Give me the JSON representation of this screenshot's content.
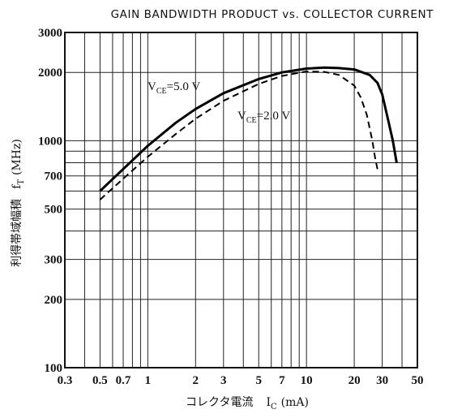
{
  "chart_data": {
    "type": "line",
    "title": "GAIN BANDWIDTH PRODUCT vs. COLLECTOR CURRENT",
    "xlabel": {
      "main": "コレクタ電流",
      "symbol": "I",
      "subscript": "C",
      "unit": "(mA)"
    },
    "ylabel": {
      "main": "利得帯域幅積",
      "symbol": "f",
      "subscript": "T",
      "unit": "(MHz)"
    },
    "x_scale": "log",
    "y_scale": "log",
    "xlim": [
      0.3,
      50
    ],
    "ylim": [
      100,
      3000
    ],
    "x_ticks": [
      0.3,
      0.5,
      0.7,
      1,
      2,
      3,
      5,
      7,
      10,
      20,
      30,
      50
    ],
    "x_tick_labels": [
      "0.3",
      "0.5",
      "0.7",
      "1",
      "2",
      "3",
      "5",
      "7",
      "10",
      "20",
      "30",
      "50"
    ],
    "y_ticks": [
      100,
      200,
      300,
      500,
      700,
      1000,
      2000,
      3000
    ],
    "y_tick_labels": [
      "100",
      "200",
      "300",
      "500",
      "700",
      "1000",
      "2000",
      "3000"
    ],
    "grid": true,
    "series": [
      {
        "name": "V_CE=5.0 V",
        "label_main": "V",
        "label_sub": "CE",
        "label_rest": "=5.0 V",
        "style": "solid",
        "x": [
          0.5,
          0.7,
          1,
          1.5,
          2,
          3,
          5,
          7,
          10,
          13,
          16,
          20,
          25,
          28,
          30,
          33,
          35,
          37
        ],
        "y": [
          600,
          750,
          950,
          1200,
          1380,
          1620,
          1870,
          2000,
          2080,
          2100,
          2090,
          2060,
          1950,
          1800,
          1600,
          1200,
          1000,
          800
        ]
      },
      {
        "name": "V_CE=2.0 V",
        "label_main": "V",
        "label_sub": "CE",
        "label_rest": "=2.0 V",
        "style": "dashed",
        "x": [
          0.5,
          0.7,
          1,
          1.5,
          2,
          3,
          5,
          7,
          10,
          13,
          16,
          20,
          22,
          24,
          26,
          27,
          28
        ],
        "y": [
          550,
          680,
          850,
          1070,
          1250,
          1500,
          1780,
          1930,
          2020,
          2010,
          1950,
          1750,
          1550,
          1300,
          1000,
          850,
          750
        ]
      }
    ]
  }
}
